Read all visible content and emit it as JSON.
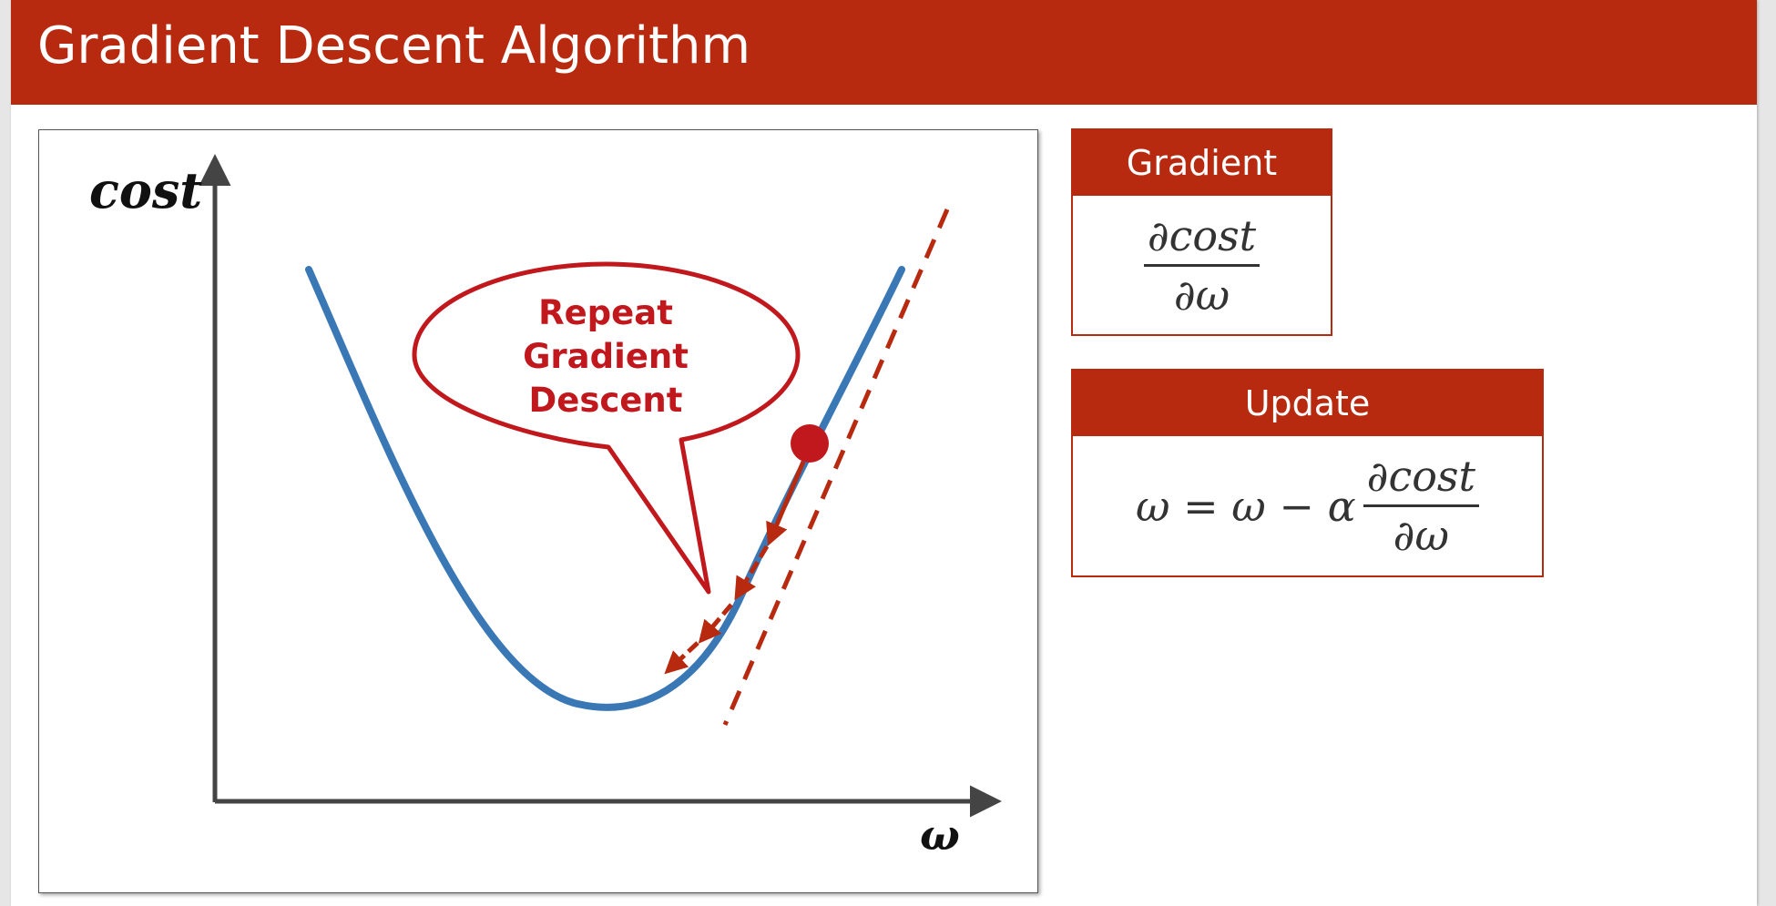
{
  "header": {
    "title": "Gradient Descent Algorithm"
  },
  "diagram": {
    "y_axis_label": "cost",
    "x_axis_label": "ω",
    "callout_lines": [
      "Repeat",
      "Gradient",
      "Descent"
    ],
    "colors": {
      "curve": "#3a78b5",
      "tangent": "#b72a10",
      "ball": "#c0181c",
      "arrows": "#b72a10",
      "callout": "#c0181c",
      "axes": "#444444"
    }
  },
  "gradient_panel": {
    "header": "Gradient",
    "numerator": "∂cost",
    "denominator": "∂ω"
  },
  "update_panel": {
    "header": "Update",
    "lhs": "ω = ω − α",
    "numerator": "∂cost",
    "denominator": "∂ω"
  },
  "theme": {
    "accent": "#b72a10",
    "background": "#ffffff"
  }
}
